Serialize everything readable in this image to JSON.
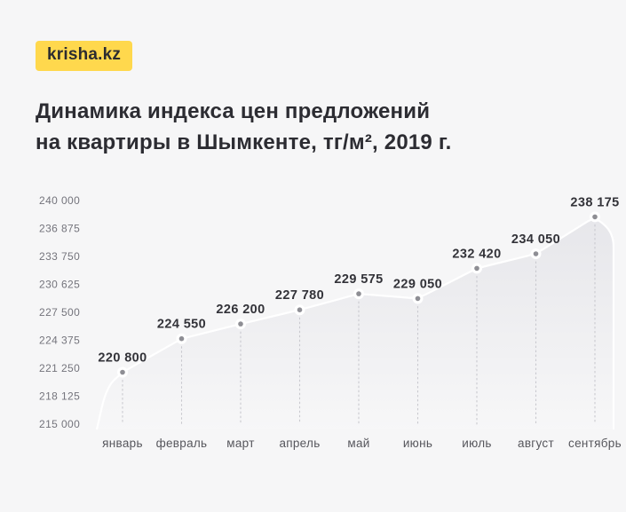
{
  "logo": {
    "text": "krisha.kz",
    "bg_color": "#FFD84D"
  },
  "title": {
    "line1": "Динамика индекса цен предложений",
    "line2": "на квартиры в Шымкенте, тг/м², 2019 г."
  },
  "chart_data": {
    "type": "area",
    "title": "Динамика индекса цен предложений на квартиры в Шымкенте, тг/м², 2019 г.",
    "categories": [
      "январь",
      "февраль",
      "март",
      "апрель",
      "май",
      "июнь",
      "июль",
      "август",
      "сентябрь"
    ],
    "values": [
      220800,
      224550,
      226200,
      227780,
      229575,
      229050,
      232420,
      234050,
      238175
    ],
    "point_labels": [
      "220 800",
      "224 550",
      "226 200",
      "227 780",
      "229 575",
      "229 050",
      "232 420",
      "234 050",
      "238 175"
    ],
    "y_tick_values": [
      240000,
      236875,
      233750,
      230625,
      227500,
      224375,
      221250,
      218125,
      215000
    ],
    "y_tick_labels": [
      "240 000",
      "236 875",
      "233 750",
      "230 625",
      "227 500",
      "224 375",
      "221 250",
      "218 125",
      "215 000"
    ],
    "ylim": [
      215000,
      240000
    ],
    "xlabel": "",
    "ylabel": "",
    "legend": "none",
    "grid": false,
    "colors": {
      "area_top": "#e6e6ea",
      "area_bottom": "#f7f7f8",
      "edge_stroke": "#ffffff",
      "dot_inner": "#8e8e94",
      "dot_halo": "#ffffff",
      "guide_dots": "#c9c9cf"
    }
  }
}
